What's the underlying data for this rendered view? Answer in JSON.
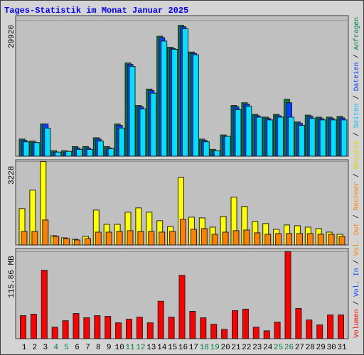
{
  "title": "Tages-Statistik im Monat Januar 2025",
  "side_legend_separator": " / ",
  "side_legend": [
    {
      "text": "Volumen",
      "color": "#ff0000"
    },
    {
      "text": "Vol. In",
      "color": "#0040ff"
    },
    {
      "text": "Vol. Out",
      "color": "#ff8000"
    },
    {
      "text": "Rechner",
      "color": "#ff8000"
    },
    {
      "text": "Besuche",
      "color": "#e0d000"
    },
    {
      "text": "Seiten",
      "color": "#00c0ff"
    },
    {
      "text": "Dateien",
      "color": "#0040ff"
    },
    {
      "text": "Anfragen",
      "color": "#008040"
    }
  ],
  "chart_data": [
    {
      "type": "bar",
      "ylim": [
        0,
        31000
      ],
      "yticks": [
        29920
      ],
      "series": [
        {
          "name": "Anfragen",
          "color": "#008040",
          "values": [
            3778,
            3324,
            7102,
            1209,
            1209,
            2115,
            2115,
            4080,
            2115,
            7102,
            20550,
            11181,
            14808,
            26443,
            24025,
            28860,
            22967,
            3778,
            1511,
            4684,
            11181,
            11786,
            9217,
            8613,
            9217,
            12541,
            7555,
            9066,
            8613,
            8613,
            8764
          ]
        },
        {
          "name": "Dateien",
          "color": "#0040ff",
          "values": [
            3476,
            3022,
            7102,
            907,
            907,
            1813,
            1813,
            3778,
            1813,
            6800,
            20248,
            10879,
            14506,
            26141,
            23723,
            28558,
            22665,
            3476,
            1209,
            4382,
            10879,
            11484,
            8915,
            8311,
            8915,
            11786,
            7253,
            8764,
            8311,
            8311,
            8462
          ]
        },
        {
          "name": "Seiten",
          "color": "#00e0ff",
          "values": [
            3173,
            3022,
            6195,
            907,
            1058,
            1511,
            1511,
            3324,
            1662,
            6195,
            19794,
            10426,
            13901,
            25385,
            23572,
            28105,
            22363,
            3173,
            1209,
            4382,
            10275,
            11030,
            8613,
            8008,
            8613,
            8613,
            6800,
            8311,
            8008,
            8008,
            8008
          ]
        }
      ]
    },
    {
      "type": "bar",
      "ylim": [
        0,
        3300
      ],
      "yticks": [
        3228
      ],
      "series": [
        {
          "name": "Besuche",
          "color": "#ffff00",
          "values": [
            1407,
            2124,
            3228,
            359,
            276,
            221,
            331,
            1352,
            800,
            800,
            1269,
            1435,
            1269,
            938,
            717,
            2621,
            1076,
            1048,
            690,
            1104,
            1849,
            1490,
            910,
            828,
            607,
            773,
            745,
            690,
            635,
            497,
            414
          ]
        },
        {
          "name": "Rechner",
          "color": "#ff8000",
          "values": [
            524,
            524,
            966,
            331,
            248,
            193,
            248,
            497,
            497,
            524,
            552,
            524,
            524,
            497,
            524,
            993,
            607,
            635,
            414,
            497,
            552,
            579,
            469,
            414,
            441,
            441,
            441,
            441,
            414,
            414,
            331
          ]
        }
      ]
    },
    {
      "type": "bar",
      "ylim": [
        0,
        120
      ],
      "yticks": [
        {
          "value": 115.86,
          "label": "115.86 MB"
        }
      ],
      "categories": [
        "1",
        "2",
        "3",
        "4",
        "5",
        "6",
        "7",
        "8",
        "9",
        "10",
        "11",
        "12",
        "13",
        "14",
        "15",
        "16",
        "17",
        "18",
        "19",
        "20",
        "21",
        "22",
        "23",
        "24",
        "25",
        "26",
        "27",
        "28",
        "29",
        "30",
        "31"
      ],
      "category_colors": [
        "#000000",
        "#000000",
        "#000000",
        "#008040",
        "#008040",
        "#000000",
        "#000000",
        "#000000",
        "#000000",
        "#000000",
        "#008040",
        "#008040",
        "#000000",
        "#000000",
        "#000000",
        "#000000",
        "#000000",
        "#008040",
        "#008040",
        "#000000",
        "#000000",
        "#000000",
        "#000000",
        "#000000",
        "#008040",
        "#008040",
        "#000000",
        "#000000",
        "#000000",
        "#000000",
        "#000000"
      ],
      "series": [
        {
          "name": "Volumen",
          "color": "#ff0000",
          "values": [
            30.6,
            32.6,
            91.0,
            15.3,
            23.9,
            33.5,
            27.8,
            30.6,
            29.7,
            21.1,
            25.9,
            28.7,
            21.1,
            49.8,
            28.7,
            84.3,
            36.4,
            27.8,
            19.2,
            12.4,
            37.3,
            39.3,
            15.3,
            10.5,
            22.0,
            115.86,
            40.2,
            24.9,
            18.2,
            31.6,
            31.6
          ]
        }
      ]
    }
  ]
}
